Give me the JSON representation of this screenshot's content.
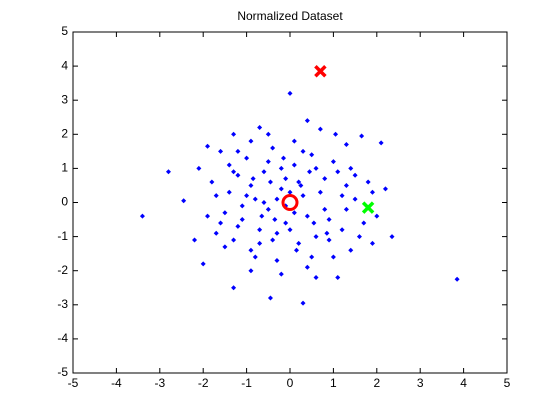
{
  "chart_data": {
    "type": "scatter",
    "title": "Normalized Dataset",
    "xlim": [
      -5,
      5
    ],
    "ylim": [
      -5,
      5
    ],
    "xticks": [
      -5,
      -4,
      -3,
      -2,
      -1,
      0,
      1,
      2,
      3,
      4,
      5
    ],
    "yticks": [
      -5,
      -4,
      -3,
      -2,
      -1,
      0,
      1,
      2,
      3,
      4,
      5
    ],
    "series": [
      {
        "color": "#0000ff",
        "marker": "dot",
        "x": [
          -3.4,
          -2.8,
          -2.45,
          3.85,
          0.0,
          0.3,
          -0.45,
          -1.3,
          1.65,
          2.1,
          2.35,
          1.1,
          -2.0,
          -1.9,
          -1.3,
          -0.7,
          0.7,
          1.05,
          -1.8,
          -1.7,
          -1.6,
          -1.5,
          -1.4,
          -1.3,
          -1.2,
          -1.1,
          -1.0,
          -0.9,
          -0.8,
          -0.7,
          -0.6,
          -0.5,
          -0.4,
          -0.3,
          -0.2,
          -0.1,
          0.1,
          0.2,
          0.3,
          0.4,
          0.5,
          0.6,
          0.8,
          0.9,
          1.0,
          1.2,
          1.3,
          1.4,
          1.5,
          -1.9,
          -1.7,
          -1.5,
          -1.3,
          -1.1,
          -0.9,
          -0.7,
          -0.5,
          -0.3,
          -0.1,
          0.1,
          0.3,
          0.5,
          0.7,
          0.9,
          1.1,
          1.3,
          1.5,
          1.7,
          1.9,
          -1.6,
          -1.4,
          -1.2,
          -1.0,
          -0.8,
          -0.6,
          -0.4,
          -0.2,
          0.0,
          0.2,
          0.4,
          0.6,
          0.8,
          1.0,
          1.2,
          1.4,
          1.6,
          1.8,
          2.0,
          -1.2,
          -0.9,
          -0.5,
          0.1,
          0.4,
          -0.2,
          0.6,
          -0.9,
          1.3,
          -2.1,
          -2.2,
          2.2,
          1.9,
          -0.3,
          0.0,
          -0.1,
          0.25,
          -0.45,
          0.55,
          -0.65,
          0.85,
          -0.85,
          0.15,
          -0.15,
          0.45,
          -0.35
        ],
        "y": [
          -0.4,
          0.9,
          0.05,
          -2.25,
          3.2,
          -2.95,
          -2.8,
          -2.5,
          1.95,
          1.75,
          -1.0,
          -2.2,
          -1.8,
          1.65,
          2.0,
          2.2,
          2.15,
          2.0,
          0.6,
          -0.9,
          1.5,
          -0.3,
          0.3,
          -1.1,
          0.8,
          -0.5,
          1.3,
          -1.4,
          0.1,
          -0.8,
          0.9,
          -0.2,
          1.6,
          -1.7,
          0.4,
          -0.6,
          1.1,
          -1.2,
          0.2,
          -0.4,
          1.4,
          -1.0,
          0.7,
          -0.5,
          1.2,
          -0.8,
          0.5,
          -1.4,
          0.1,
          -0.4,
          0.2,
          -1.3,
          0.9,
          -0.1,
          0.5,
          -1.2,
          1.2,
          -0.9,
          0.7,
          -0.3,
          1.5,
          -1.6,
          0.3,
          -1.1,
          0.9,
          -0.2,
          0.8,
          -0.6,
          0.3,
          -0.6,
          1.1,
          -0.7,
          0.2,
          -1.6,
          0.0,
          -1.1,
          1.0,
          -0.8,
          0.6,
          -1.9,
          1.0,
          -0.2,
          -1.6,
          0.2,
          1.0,
          -1.0,
          0.6,
          -0.4,
          1.5,
          1.8,
          2.0,
          1.8,
          2.4,
          -2.1,
          -2.2,
          -2.0,
          1.7,
          1.0,
          -1.1,
          0.4,
          -1.2,
          0.1,
          0.3,
          -0.1,
          0.5,
          0.6,
          -0.6,
          -0.4,
          -0.9,
          0.7,
          -1.4,
          1.3,
          0.9,
          -0.5
        ]
      },
      {
        "color": "#ff0000",
        "marker": "circle",
        "x": [
          0.0
        ],
        "y": [
          0.0
        ]
      },
      {
        "color": "#ff0000",
        "marker": "x",
        "x": [
          0.7
        ],
        "y": [
          3.85
        ]
      },
      {
        "color": "#00ff00",
        "marker": "x",
        "x": [
          1.8
        ],
        "y": [
          -0.15
        ]
      }
    ]
  }
}
